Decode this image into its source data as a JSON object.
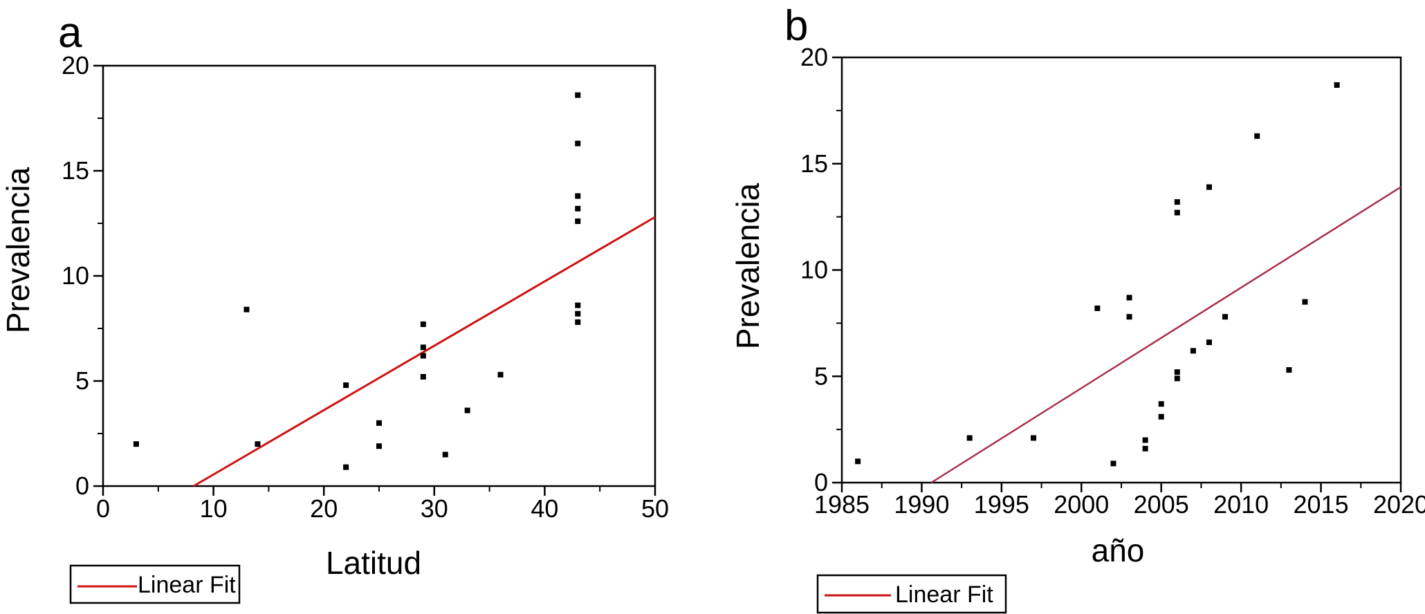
{
  "chart_data": [
    {
      "panel": "a",
      "type": "scatter",
      "xlabel": "Latitud",
      "ylabel": "Prevalencia",
      "xlim": [
        0,
        50
      ],
      "ylim": [
        0,
        20
      ],
      "xticks": [
        "0",
        "10",
        "20",
        "30",
        "40",
        "50"
      ],
      "yticks": [
        "0",
        "5",
        "10",
        "15",
        "20"
      ],
      "points": [
        {
          "x": 3,
          "y": 2.0
        },
        {
          "x": 13,
          "y": 8.4
        },
        {
          "x": 14,
          "y": 2.0
        },
        {
          "x": 22,
          "y": 4.8
        },
        {
          "x": 22,
          "y": 0.9
        },
        {
          "x": 25,
          "y": 3.0
        },
        {
          "x": 25,
          "y": 1.9
        },
        {
          "x": 29,
          "y": 7.7
        },
        {
          "x": 29,
          "y": 6.6
        },
        {
          "x": 29,
          "y": 6.2
        },
        {
          "x": 29,
          "y": 5.2
        },
        {
          "x": 31,
          "y": 1.5
        },
        {
          "x": 33,
          "y": 3.6
        },
        {
          "x": 36,
          "y": 5.3
        },
        {
          "x": 43,
          "y": 18.6
        },
        {
          "x": 43,
          "y": 16.3
        },
        {
          "x": 43,
          "y": 13.8
        },
        {
          "x": 43,
          "y": 13.2
        },
        {
          "x": 43,
          "y": 12.6
        },
        {
          "x": 43,
          "y": 8.6
        },
        {
          "x": 43,
          "y": 8.2
        },
        {
          "x": 43,
          "y": 7.8
        }
      ],
      "fit_line": {
        "x": [
          8.2,
          50
        ],
        "y": [
          0,
          12.8
        ]
      },
      "legend": "Linear Fit",
      "fit_color": "#cc1111"
    },
    {
      "panel": "b",
      "type": "scatter",
      "xlabel": "año",
      "ylabel": "Prevalencia",
      "xlim": [
        1985,
        2020
      ],
      "ylim": [
        0,
        20
      ],
      "xticks": [
        "1985",
        "1990",
        "1995",
        "2000",
        "2005",
        "2010",
        "2015",
        "2020"
      ],
      "yticks": [
        "0",
        "5",
        "10",
        "15",
        "20"
      ],
      "points": [
        {
          "x": 1986,
          "y": 1.0
        },
        {
          "x": 1993,
          "y": 2.1
        },
        {
          "x": 1997,
          "y": 2.1
        },
        {
          "x": 2001,
          "y": 8.2
        },
        {
          "x": 2002,
          "y": 0.9
        },
        {
          "x": 2003,
          "y": 8.7
        },
        {
          "x": 2003,
          "y": 7.8
        },
        {
          "x": 2004,
          "y": 2.0
        },
        {
          "x": 2004,
          "y": 1.6
        },
        {
          "x": 2005,
          "y": 3.7
        },
        {
          "x": 2005,
          "y": 3.1
        },
        {
          "x": 2006,
          "y": 13.2
        },
        {
          "x": 2006,
          "y": 12.7
        },
        {
          "x": 2006,
          "y": 5.2
        },
        {
          "x": 2006,
          "y": 4.9
        },
        {
          "x": 2007,
          "y": 6.2
        },
        {
          "x": 2008,
          "y": 13.9
        },
        {
          "x": 2008,
          "y": 6.6
        },
        {
          "x": 2009,
          "y": 7.8
        },
        {
          "x": 2011,
          "y": 16.3
        },
        {
          "x": 2013,
          "y": 5.3
        },
        {
          "x": 2014,
          "y": 8.5
        },
        {
          "x": 2016,
          "y": 18.7
        }
      ],
      "fit_line": {
        "x": [
          1990.6,
          2020
        ],
        "y": [
          0,
          13.9
        ]
      },
      "legend": "Linear Fit",
      "fit_color": "#a8304a"
    }
  ],
  "colors": {
    "points": "#000000",
    "axes": "#000000"
  }
}
